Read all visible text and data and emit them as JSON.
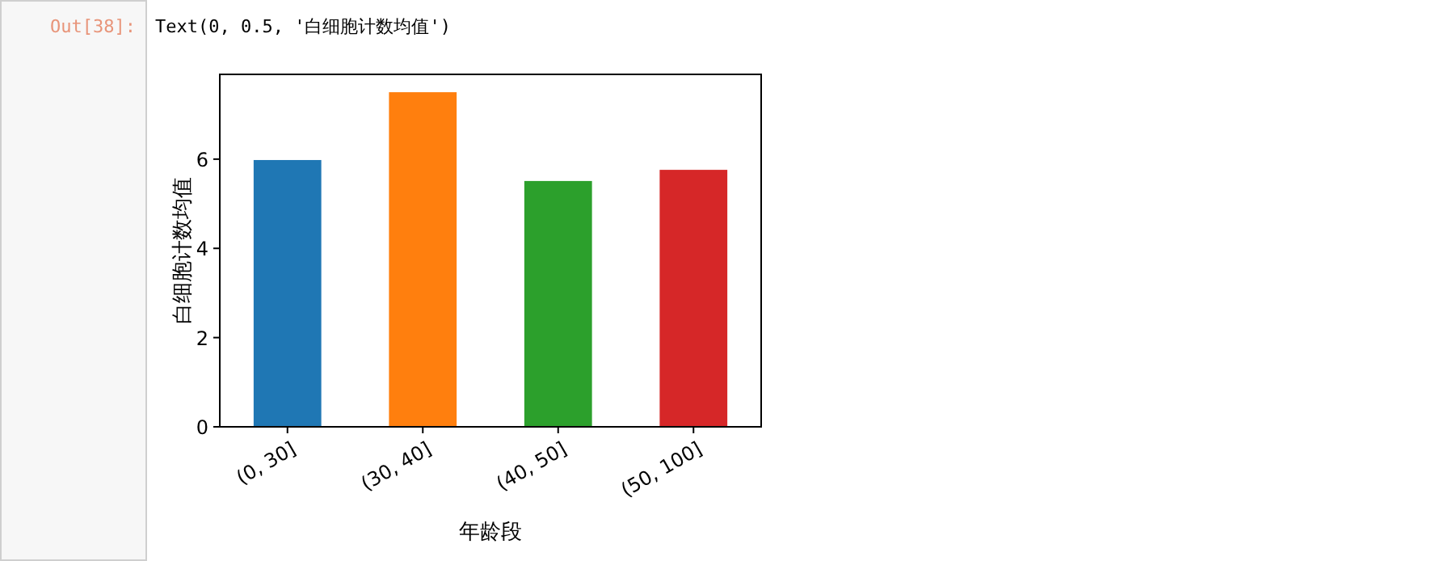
{
  "chart_data": {
    "type": "bar",
    "categories": [
      "(0, 30]",
      "(30, 40]",
      "(40, 50]",
      "(50, 100]"
    ],
    "values": [
      5.98,
      7.5,
      5.51,
      5.76
    ],
    "colors": [
      "#1f77b4",
      "#ff7f0e",
      "#2ca02c",
      "#d62728"
    ],
    "ylim": [
      0,
      7.9
    ],
    "yticks": [
      0,
      2,
      4,
      6
    ],
    "xlabel": "年龄段",
    "ylabel": "白细胞计数均值",
    "grid": false,
    "annotations": [
      "Out[38]:",
      "Text(0, 0.5, '白细胞计数均值')"
    ]
  }
}
